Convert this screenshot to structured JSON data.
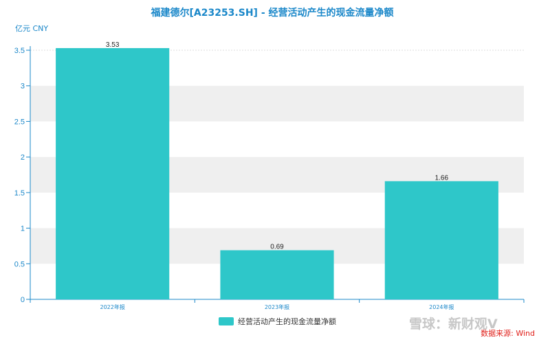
{
  "chart_data": {
    "type": "bar",
    "title": "福建德尔[A23253.SH] - 经营活动产生的现金流量净额",
    "unit_label": "亿元  CNY",
    "categories": [
      "2022年报",
      "2023年报",
      "2024年报"
    ],
    "series": [
      {
        "name": "经营活动产生的现金流量净额",
        "values": [
          3.53,
          0.69,
          1.66
        ],
        "color": "#2ec7c9"
      }
    ],
    "data_labels": [
      "3.53",
      "0.69",
      "1.66"
    ],
    "ylim": [
      0,
      3.5
    ],
    "yticks": [
      "0",
      "0.5",
      "1",
      "1.5",
      "2",
      "2.5",
      "3",
      "3.5"
    ],
    "grid": "alternating horizontal bands",
    "legend": "bottom-center",
    "axis_color": "#1a87c9",
    "band_color": "#efefef"
  },
  "source_note": "数据来源: Wind",
  "watermark": "雪球：新财观V"
}
